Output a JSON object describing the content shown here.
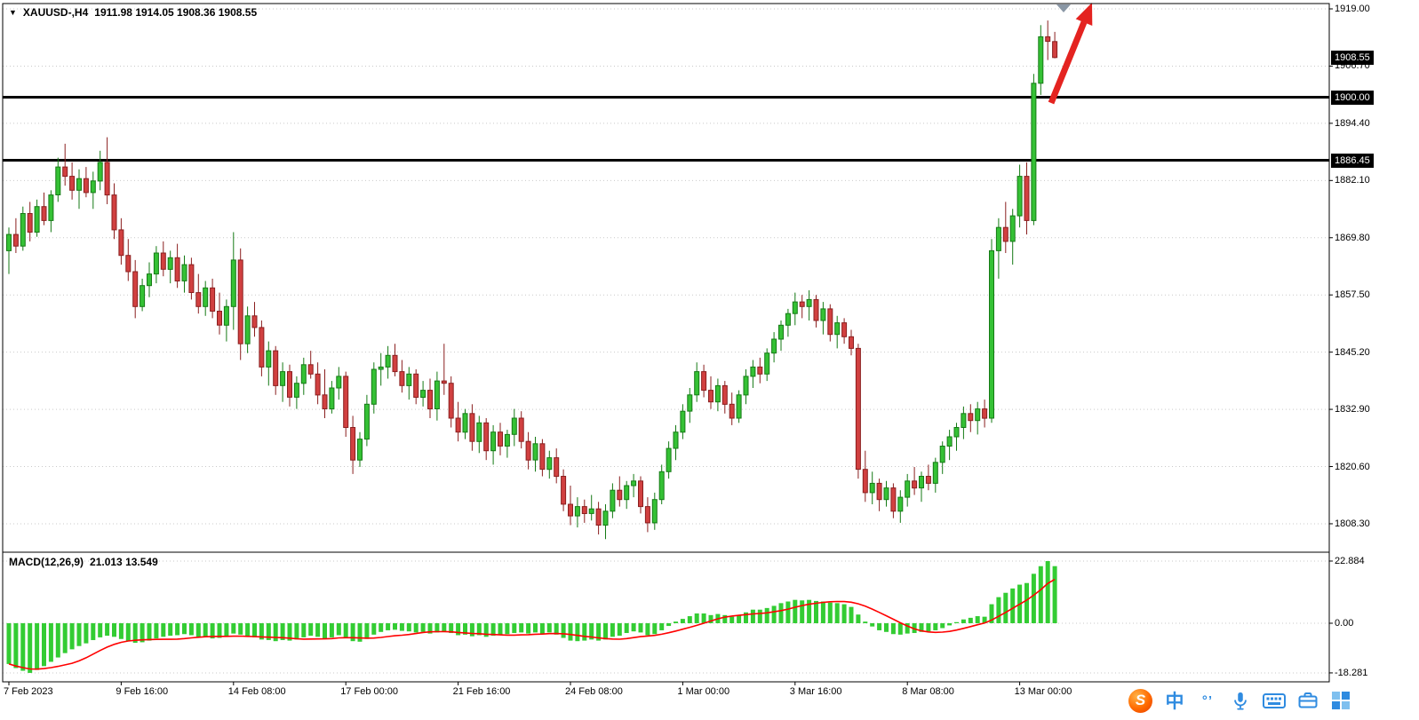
{
  "header": {
    "collapse_icon": "▼",
    "symbol": "XAUUSD-,H4",
    "ohlc_text": "1911.98 1914.05 1908.36 1908.55"
  },
  "taskbar": {
    "icons": [
      {
        "name": "sogou-input-logo",
        "glyph": "S"
      },
      {
        "name": "chinese-input-mode",
        "glyph": "中"
      },
      {
        "name": "punctuation-mode",
        "glyph": "°’"
      },
      {
        "name": "voice-input"
      },
      {
        "name": "virtual-keyboard"
      },
      {
        "name": "toolbox"
      },
      {
        "name": "expand-grid"
      }
    ]
  },
  "chart_data": {
    "type": "candlestick",
    "title": "XAUUSD-,H4",
    "timeframe": "H4",
    "current_ohlc": {
      "open": 1911.98,
      "high": 1914.05,
      "low": 1908.36,
      "close": 1908.55
    },
    "colors": {
      "up": "#35c135",
      "up_edge": "#157a15",
      "down": "#d14040",
      "down_edge": "#8a1f1f"
    },
    "y_axis": {
      "tick_labels": [
        "1919.00",
        "1906.70",
        "1894.40",
        "1882.10",
        "1869.80",
        "1857.50",
        "1845.20",
        "1832.90",
        "1820.60",
        "1808.30"
      ]
    },
    "x_axis": {
      "labels": [
        {
          "t": "7 Feb 2023",
          "i": 0
        },
        {
          "t": "9 Feb 16:00",
          "i": 16
        },
        {
          "t": "14 Feb 08:00",
          "i": 32
        },
        {
          "t": "17 Feb 00:00",
          "i": 48
        },
        {
          "t": "21 Feb 16:00",
          "i": 64
        },
        {
          "t": "24 Feb 08:00",
          "i": 80
        },
        {
          "t": "1 Mar 00:00",
          "i": 96
        },
        {
          "t": "3 Mar 16:00",
          "i": 112
        },
        {
          "t": "8 Mar 08:00",
          "i": 128
        },
        {
          "t": "13 Mar 00:00",
          "i": 144
        }
      ]
    },
    "levels": [
      {
        "price": 1900.0,
        "label": "1900.00"
      },
      {
        "price": 1886.45,
        "label": "1886.45"
      }
    ],
    "price_tag": {
      "price": 1908.55,
      "label": "1908.55"
    },
    "annotation_arrow": {
      "color": "#e42320",
      "direction": "up"
    },
    "candles": [
      [
        1867.0,
        1872.0,
        1862.0,
        1870.5
      ],
      [
        1870.5,
        1874.0,
        1866.5,
        1868.0
      ],
      [
        1868.0,
        1876.5,
        1867.0,
        1875.0
      ],
      [
        1875.0,
        1877.5,
        1869.0,
        1871.0
      ],
      [
        1871.0,
        1878.0,
        1870.0,
        1876.5
      ],
      [
        1876.5,
        1879.5,
        1872.5,
        1873.5
      ],
      [
        1873.5,
        1880.0,
        1871.0,
        1879.0
      ],
      [
        1879.0,
        1887.0,
        1877.5,
        1885.0
      ],
      [
        1885.0,
        1890.0,
        1881.0,
        1883.0
      ],
      [
        1883.0,
        1886.0,
        1878.0,
        1880.0
      ],
      [
        1880.0,
        1884.5,
        1876.0,
        1882.5
      ],
      [
        1882.5,
        1885.0,
        1878.5,
        1879.5
      ],
      [
        1879.5,
        1884.0,
        1876.0,
        1882.0
      ],
      [
        1882.0,
        1888.5,
        1880.0,
        1886.0
      ],
      [
        1886.0,
        1891.4,
        1877.0,
        1879.0
      ],
      [
        1879.0,
        1881.5,
        1869.5,
        1871.5
      ],
      [
        1871.5,
        1874.0,
        1864.0,
        1866.0
      ],
      [
        1866.0,
        1869.5,
        1860.5,
        1862.5
      ],
      [
        1862.5,
        1865.0,
        1852.5,
        1855.0
      ],
      [
        1855.0,
        1861.0,
        1854.0,
        1859.5
      ],
      [
        1859.5,
        1864.5,
        1857.0,
        1862.0
      ],
      [
        1862.0,
        1868.0,
        1860.0,
        1866.5
      ],
      [
        1866.5,
        1869.0,
        1861.5,
        1863.0
      ],
      [
        1863.0,
        1867.0,
        1860.0,
        1865.5
      ],
      [
        1865.5,
        1868.5,
        1859.0,
        1860.5
      ],
      [
        1860.5,
        1866.0,
        1858.0,
        1864.0
      ],
      [
        1864.0,
        1865.5,
        1856.5,
        1858.0
      ],
      [
        1858.0,
        1862.0,
        1853.5,
        1855.0
      ],
      [
        1855.0,
        1860.5,
        1853.0,
        1859.0
      ],
      [
        1859.0,
        1861.0,
        1852.5,
        1854.0
      ],
      [
        1854.0,
        1858.0,
        1849.0,
        1851.0
      ],
      [
        1851.0,
        1856.5,
        1847.5,
        1855.0
      ],
      [
        1855.0,
        1871.0,
        1850.0,
        1865.0
      ],
      [
        1865.0,
        1867.5,
        1843.5,
        1847.0
      ],
      [
        1847.0,
        1855.0,
        1845.0,
        1853.0
      ],
      [
        1853.0,
        1856.0,
        1848.5,
        1850.5
      ],
      [
        1850.5,
        1852.0,
        1840.0,
        1842.0
      ],
      [
        1842.0,
        1847.5,
        1838.0,
        1845.5
      ],
      [
        1845.5,
        1846.5,
        1836.0,
        1838.0
      ],
      [
        1838.0,
        1843.0,
        1834.5,
        1841.0
      ],
      [
        1841.0,
        1842.5,
        1833.5,
        1835.5
      ],
      [
        1835.5,
        1840.0,
        1833.0,
        1838.5
      ],
      [
        1838.5,
        1844.0,
        1836.0,
        1842.5
      ],
      [
        1842.5,
        1845.5,
        1839.5,
        1840.5
      ],
      [
        1840.5,
        1843.0,
        1834.0,
        1836.0
      ],
      [
        1836.0,
        1841.5,
        1831.0,
        1833.0
      ],
      [
        1833.0,
        1839.0,
        1832.0,
        1837.5
      ],
      [
        1837.5,
        1842.0,
        1835.0,
        1840.0
      ],
      [
        1840.0,
        1841.0,
        1827.0,
        1829.0
      ],
      [
        1829.0,
        1831.5,
        1819.0,
        1822.0
      ],
      [
        1822.0,
        1828.0,
        1820.5,
        1826.5
      ],
      [
        1826.5,
        1836.0,
        1825.0,
        1834.0
      ],
      [
        1834.0,
        1843.0,
        1832.0,
        1841.5
      ],
      [
        1841.5,
        1845.0,
        1838.0,
        1842.0
      ],
      [
        1842.0,
        1846.5,
        1839.5,
        1844.5
      ],
      [
        1844.5,
        1847.0,
        1840.0,
        1841.0
      ],
      [
        1841.0,
        1843.5,
        1836.5,
        1838.0
      ],
      [
        1838.0,
        1842.0,
        1835.0,
        1840.5
      ],
      [
        1840.5,
        1841.5,
        1834.0,
        1835.5
      ],
      [
        1835.5,
        1839.0,
        1833.5,
        1837.0
      ],
      [
        1837.0,
        1839.5,
        1831.0,
        1833.0
      ],
      [
        1833.0,
        1841.0,
        1830.5,
        1839.0
      ],
      [
        1839.0,
        1847.0,
        1836.0,
        1838.5
      ],
      [
        1838.5,
        1840.0,
        1829.0,
        1831.0
      ],
      [
        1831.0,
        1834.5,
        1826.0,
        1828.0
      ],
      [
        1828.0,
        1833.0,
        1826.5,
        1832.0
      ],
      [
        1832.0,
        1834.0,
        1824.0,
        1826.0
      ],
      [
        1826.0,
        1831.5,
        1823.5,
        1830.0
      ],
      [
        1830.0,
        1831.0,
        1822.0,
        1824.0
      ],
      [
        1824.0,
        1829.5,
        1821.0,
        1828.0
      ],
      [
        1828.0,
        1830.0,
        1823.0,
        1825.0
      ],
      [
        1825.0,
        1828.5,
        1822.5,
        1827.5
      ],
      [
        1827.5,
        1833.0,
        1825.0,
        1831.0
      ],
      [
        1831.0,
        1832.5,
        1824.5,
        1826.0
      ],
      [
        1826.0,
        1828.0,
        1820.0,
        1822.0
      ],
      [
        1822.0,
        1827.0,
        1819.5,
        1825.5
      ],
      [
        1825.5,
        1826.5,
        1818.5,
        1820.0
      ],
      [
        1820.0,
        1824.0,
        1818.0,
        1822.5
      ],
      [
        1822.5,
        1824.5,
        1817.0,
        1818.5
      ],
      [
        1818.5,
        1820.0,
        1811.0,
        1812.5
      ],
      [
        1812.5,
        1816.5,
        1808.0,
        1810.0
      ],
      [
        1810.0,
        1814.0,
        1807.5,
        1812.0
      ],
      [
        1812.0,
        1813.5,
        1808.5,
        1810.5
      ],
      [
        1810.5,
        1814.5,
        1809.0,
        1811.5
      ],
      [
        1811.5,
        1813.0,
        1806.0,
        1808.0
      ],
      [
        1808.0,
        1812.5,
        1805.0,
        1811.0
      ],
      [
        1811.0,
        1817.0,
        1809.5,
        1815.5
      ],
      [
        1815.5,
        1818.5,
        1812.0,
        1813.5
      ],
      [
        1813.5,
        1817.5,
        1811.5,
        1816.5
      ],
      [
        1816.5,
        1819.0,
        1814.0,
        1817.5
      ],
      [
        1817.5,
        1818.5,
        1810.5,
        1812.0
      ],
      [
        1812.0,
        1814.0,
        1806.5,
        1808.5
      ],
      [
        1808.5,
        1815.0,
        1807.0,
        1813.5
      ],
      [
        1813.5,
        1821.0,
        1812.5,
        1819.5
      ],
      [
        1819.5,
        1826.0,
        1818.0,
        1824.5
      ],
      [
        1824.5,
        1829.5,
        1822.0,
        1828.0
      ],
      [
        1828.0,
        1834.0,
        1826.5,
        1832.5
      ],
      [
        1832.5,
        1837.5,
        1830.0,
        1836.0
      ],
      [
        1836.0,
        1843.0,
        1834.5,
        1841.0
      ],
      [
        1841.0,
        1842.5,
        1835.5,
        1837.0
      ],
      [
        1837.0,
        1840.0,
        1833.0,
        1834.5
      ],
      [
        1834.5,
        1839.5,
        1832.5,
        1838.0
      ],
      [
        1838.0,
        1839.0,
        1832.0,
        1834.0
      ],
      [
        1834.0,
        1836.5,
        1829.5,
        1831.0
      ],
      [
        1831.0,
        1837.0,
        1830.0,
        1836.0
      ],
      [
        1836.0,
        1841.5,
        1834.0,
        1840.0
      ],
      [
        1840.0,
        1843.5,
        1837.5,
        1842.0
      ],
      [
        1842.0,
        1844.0,
        1838.5,
        1840.5
      ],
      [
        1840.5,
        1846.0,
        1839.0,
        1845.0
      ],
      [
        1845.0,
        1849.5,
        1843.0,
        1848.0
      ],
      [
        1848.0,
        1852.0,
        1845.5,
        1851.0
      ],
      [
        1851.0,
        1854.5,
        1848.5,
        1853.5
      ],
      [
        1853.5,
        1858.0,
        1851.0,
        1856.0
      ],
      [
        1856.0,
        1857.5,
        1852.5,
        1855.0
      ],
      [
        1855.0,
        1858.5,
        1852.0,
        1856.5
      ],
      [
        1856.5,
        1857.5,
        1850.5,
        1852.0
      ],
      [
        1852.0,
        1856.0,
        1849.0,
        1854.5
      ],
      [
        1854.5,
        1855.5,
        1847.5,
        1849.0
      ],
      [
        1849.0,
        1853.0,
        1846.0,
        1851.5
      ],
      [
        1851.5,
        1852.5,
        1847.0,
        1848.5
      ],
      [
        1848.5,
        1850.0,
        1844.5,
        1846.0
      ],
      [
        1846.0,
        1847.0,
        1818.0,
        1820.0
      ],
      [
        1820.0,
        1824.0,
        1813.0,
        1815.0
      ],
      [
        1815.0,
        1819.5,
        1812.5,
        1817.0
      ],
      [
        1817.0,
        1818.0,
        1811.0,
        1813.5
      ],
      [
        1813.5,
        1817.5,
        1812.0,
        1816.0
      ],
      [
        1816.0,
        1817.0,
        1809.5,
        1811.0
      ],
      [
        1811.0,
        1815.5,
        1808.5,
        1814.0
      ],
      [
        1814.0,
        1819.0,
        1812.0,
        1817.5
      ],
      [
        1817.5,
        1820.5,
        1814.5,
        1816.0
      ],
      [
        1816.0,
        1819.5,
        1813.0,
        1818.5
      ],
      [
        1818.5,
        1821.0,
        1815.5,
        1817.0
      ],
      [
        1817.0,
        1822.5,
        1815.0,
        1821.5
      ],
      [
        1821.5,
        1826.0,
        1819.0,
        1825.0
      ],
      [
        1825.0,
        1828.5,
        1822.0,
        1827.0
      ],
      [
        1827.0,
        1830.0,
        1824.0,
        1829.0
      ],
      [
        1829.0,
        1833.5,
        1826.5,
        1832.0
      ],
      [
        1832.0,
        1834.0,
        1828.0,
        1830.5
      ],
      [
        1830.5,
        1834.5,
        1827.5,
        1833.0
      ],
      [
        1833.0,
        1835.0,
        1829.0,
        1831.0
      ],
      [
        1831.0,
        1869.5,
        1830.0,
        1867.0
      ],
      [
        1867.0,
        1874.0,
        1861.0,
        1872.0
      ],
      [
        1872.0,
        1877.5,
        1866.5,
        1869.0
      ],
      [
        1869.0,
        1876.0,
        1864.0,
        1874.5
      ],
      [
        1874.5,
        1885.5,
        1872.0,
        1883.0
      ],
      [
        1883.0,
        1886.0,
        1870.5,
        1873.5
      ],
      [
        1873.5,
        1905.0,
        1872.5,
        1903.0
      ],
      [
        1903.0,
        1915.5,
        1900.5,
        1913.0
      ],
      [
        1913.0,
        1916.5,
        1908.0,
        1912.0
      ],
      [
        1911.98,
        1914.05,
        1908.36,
        1908.55
      ]
    ],
    "macd": {
      "label": "MACD(12,26,9)",
      "values_text": "21.013 13.549",
      "main_value": 21.013,
      "signal_value": 13.549,
      "scale_labels": [
        "22.884",
        "0.00",
        "-18.281"
      ],
      "histogram_color": "#33cc33",
      "signal_color": "#ff0000",
      "histogram": [
        -15,
        -16.5,
        -17.5,
        -18.281,
        -17.2,
        -15.8,
        -14.2,
        -12.6,
        -11.0,
        -9.6,
        -8.4,
        -7.4,
        -6.2,
        -5.2,
        -4.6,
        -5.0,
        -5.8,
        -6.6,
        -7.2,
        -7.0,
        -6.4,
        -5.6,
        -5.0,
        -4.6,
        -4.4,
        -4.0,
        -4.4,
        -5.0,
        -5.2,
        -5.6,
        -5.4,
        -5.0,
        -3.8,
        -4.2,
        -4.8,
        -5.2,
        -6.0,
        -6.2,
        -6.6,
        -6.2,
        -6.4,
        -6.0,
        -5.2,
        -4.6,
        -5.0,
        -5.6,
        -5.2,
        -4.4,
        -5.4,
        -6.6,
        -6.8,
        -5.8,
        -4.2,
        -3.2,
        -2.6,
        -2.4,
        -2.8,
        -3.0,
        -3.4,
        -3.2,
        -3.8,
        -3.4,
        -3.0,
        -3.6,
        -4.4,
        -4.2,
        -4.8,
        -4.4,
        -5.0,
        -4.6,
        -4.4,
        -4.0,
        -3.6,
        -3.4,
        -3.8,
        -3.4,
        -3.8,
        -3.4,
        -4.2,
        -5.4,
        -6.4,
        -6.6,
        -6.4,
        -6.0,
        -6.4,
        -6.0,
        -5.0,
        -4.6,
        -3.6,
        -3.0,
        -3.4,
        -4.4,
        -4.0,
        -2.6,
        -1.0,
        0.6,
        1.6,
        2.6,
        3.6,
        3.6,
        3.0,
        3.4,
        3.0,
        2.4,
        3.0,
        4.0,
        5.0,
        5.0,
        5.6,
        6.4,
        7.4,
        8.0,
        8.6,
        8.4,
        8.6,
        8.2,
        8.0,
        7.6,
        7.4,
        7.0,
        6.0,
        3.2,
        0.6,
        -1.2,
        -2.6,
        -3.2,
        -4.0,
        -4.2,
        -3.8,
        -3.6,
        -3.2,
        -3.0,
        -2.6,
        -1.8,
        -0.8,
        0.4,
        1.4,
        2.0,
        2.6,
        2.4,
        7.0,
        9.6,
        11.2,
        12.8,
        14.2,
        14.8,
        18.2,
        21.0,
        22.884,
        21.013
      ]
    }
  }
}
